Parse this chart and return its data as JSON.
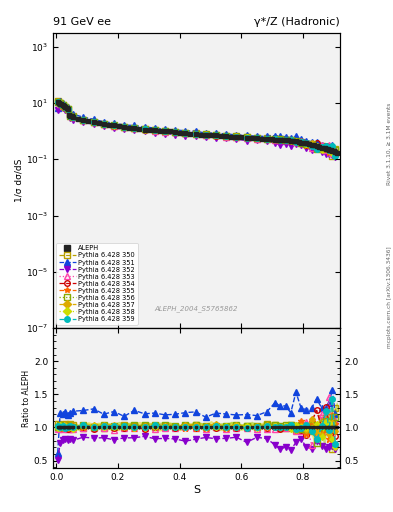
{
  "title_left": "91 GeV ee",
  "title_right": "γ*/Z (Hadronic)",
  "ylabel_main": "1/σ dσ/dS",
  "ylabel_ratio": "Ratio to ALEPH",
  "xlabel": "S",
  "right_label": "Rivet 3.1.10, ≥ 3.1M events",
  "right_label2": "mcplots.cern.ch [arXiv:1306.3436]",
  "watermark": "ALEPH_2004_S5765862",
  "ylim_main": [
    1e-07,
    3000.0
  ],
  "ylim_ratio": [
    0.38,
    2.5
  ],
  "xlim": [
    -0.01,
    0.92
  ],
  "yticks_ratio": [
    0.5,
    1.0,
    1.5,
    2.0
  ],
  "styles": [
    {
      "label": "ALEPH",
      "color": "#222222",
      "marker": "s",
      "ls": "none",
      "mfc": "#222222",
      "ms": 3.5,
      "lw": 0
    },
    {
      "label": "Pythia 6.428 350",
      "color": "#b8a000",
      "marker": "s",
      "ls": "--",
      "mfc": "none",
      "ms": 4,
      "lw": 1.0
    },
    {
      "label": "Pythia 6.428 351",
      "color": "#1144dd",
      "marker": "^",
      "ls": "--",
      "mfc": "#1144dd",
      "ms": 4,
      "lw": 1.0
    },
    {
      "label": "Pythia 6.428 352",
      "color": "#8800cc",
      "marker": "v",
      "ls": "--",
      "mfc": "#8800cc",
      "ms": 4,
      "lw": 1.0
    },
    {
      "label": "Pythia 6.428 353",
      "color": "#ff44aa",
      "marker": "^",
      "ls": ":",
      "mfc": "none",
      "ms": 4,
      "lw": 1.0
    },
    {
      "label": "Pythia 6.428 354",
      "color": "#cc0000",
      "marker": "o",
      "ls": "--",
      "mfc": "none",
      "ms": 4,
      "lw": 1.0
    },
    {
      "label": "Pythia 6.428 355",
      "color": "#ff6600",
      "marker": "*",
      "ls": "--",
      "mfc": "#ff6600",
      "ms": 5,
      "lw": 1.0
    },
    {
      "label": "Pythia 6.428 356",
      "color": "#88aa00",
      "marker": "s",
      "ls": ":",
      "mfc": "none",
      "ms": 4,
      "lw": 1.0
    },
    {
      "label": "Pythia 6.428 357",
      "color": "#ddaa00",
      "marker": "D",
      "ls": "--",
      "mfc": "#ddaa00",
      "ms": 3,
      "lw": 1.0
    },
    {
      "label": "Pythia 6.428 358",
      "color": "#ccdd00",
      "marker": "D",
      "ls": ":",
      "mfc": "#ccdd00",
      "ms": 3,
      "lw": 1.0
    },
    {
      "label": "Pythia 6.428 359",
      "color": "#00bbbb",
      "marker": "o",
      "ls": "--",
      "mfc": "#00bbbb",
      "ms": 4,
      "lw": 1.0
    }
  ],
  "band_color_yellow": "#e8d800",
  "band_color_green": "#99cc00",
  "band_alpha": 0.4,
  "bg_color": "#f2f2f2"
}
